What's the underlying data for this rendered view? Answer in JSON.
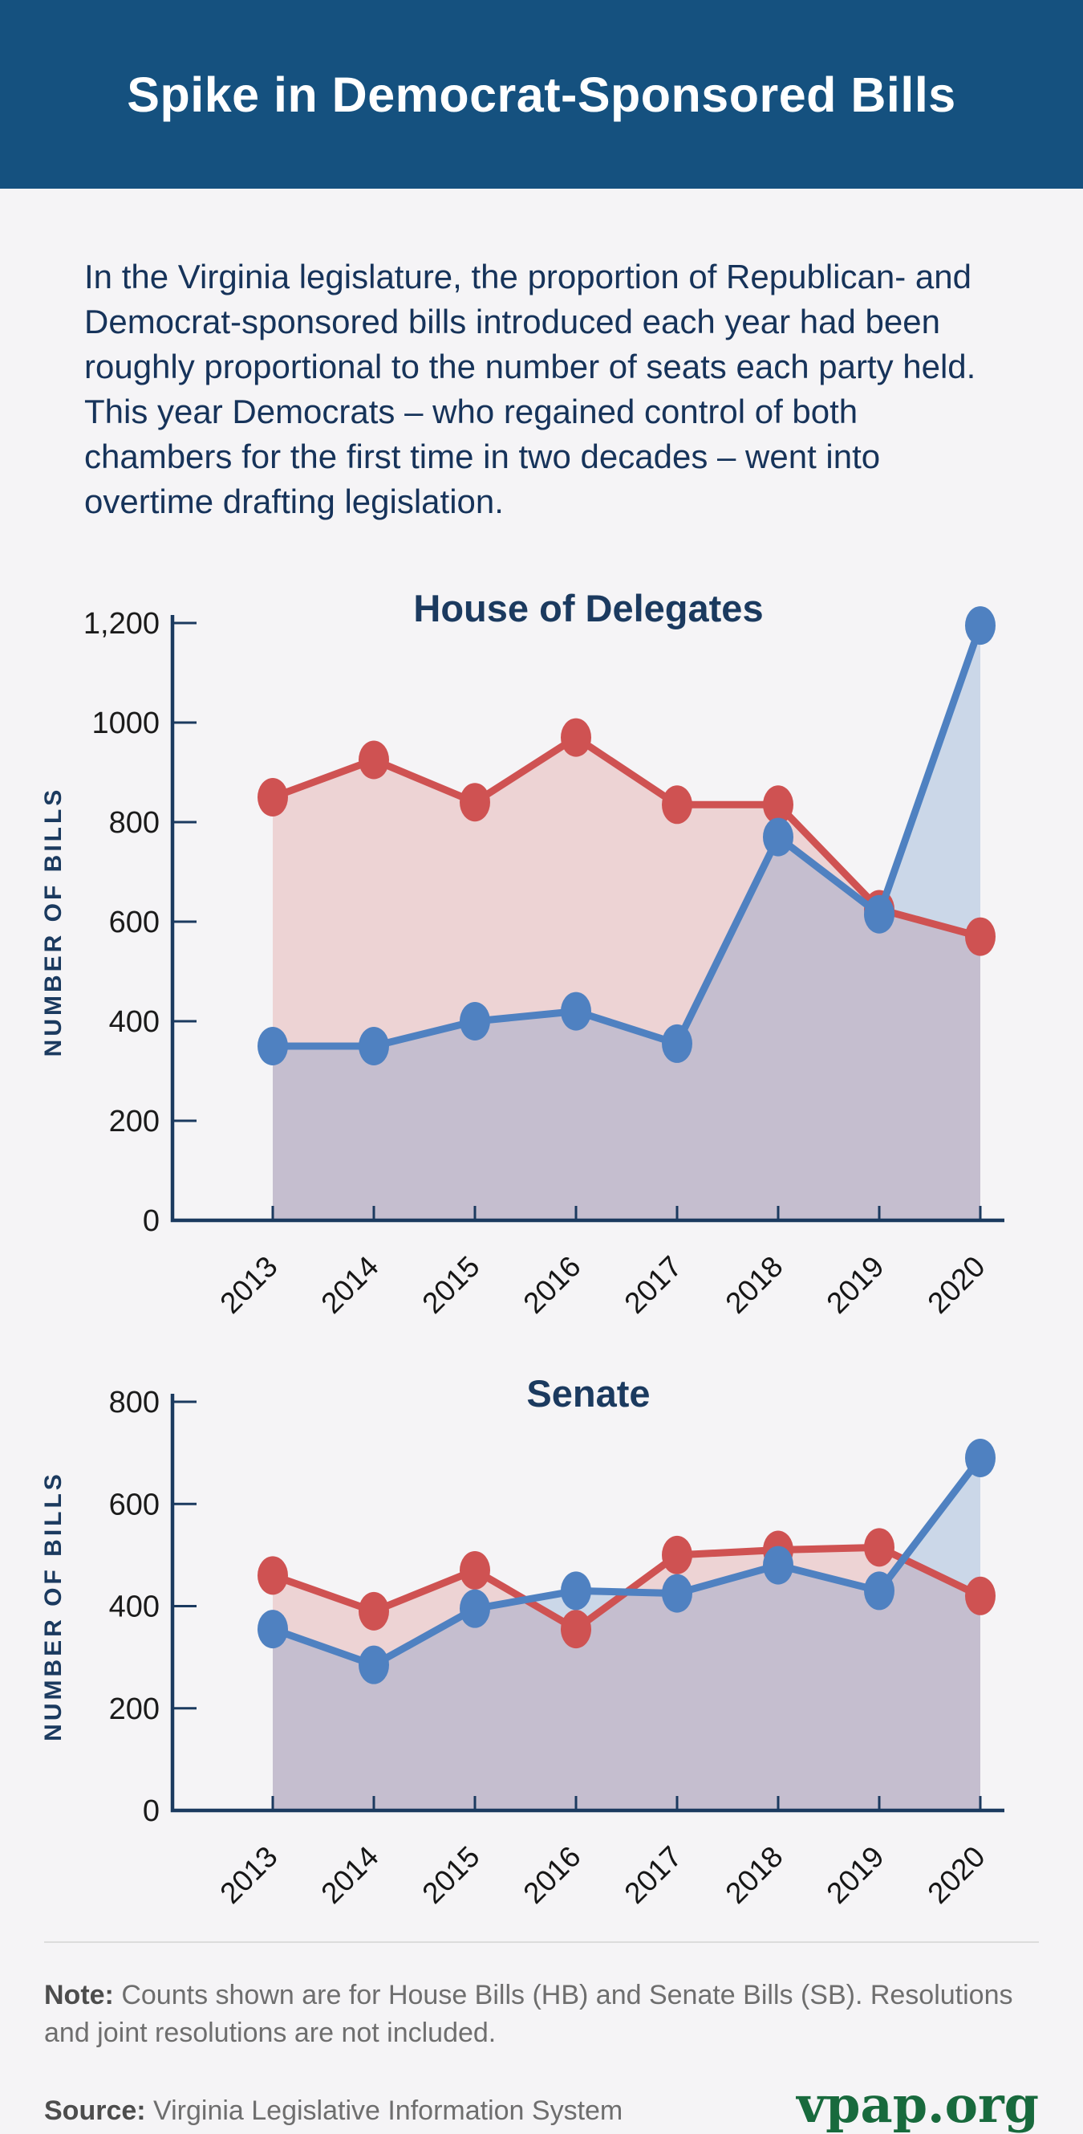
{
  "header": {
    "title": "Spike in Democrat-Sponsored Bills"
  },
  "intro": "In the Virginia legislature, the proportion of Republican- and Democrat-sponsored bills introduced each year had been roughly proportional to the number of seats each party held. This year Democrats – who regained control of both chambers for the first time in two decades – went into overtime drafting legislation.",
  "colors": {
    "header_bg": "#15517f",
    "navy_text": "#1b3a5f",
    "republican_red": "#cf5252",
    "democrat_blue": "#4f81c1",
    "page_bg": "#f5f4f6",
    "vpap_green": "#186a3d"
  },
  "chart_data": [
    {
      "type": "area",
      "title": "House of Delegates",
      "xlabel": "",
      "ylabel": "NUMBER OF BILLS",
      "x": [
        "2013",
        "2014",
        "2015",
        "2016",
        "2017",
        "2018",
        "2019",
        "2020"
      ],
      "ylim": [
        0,
        1200
      ],
      "ytick_step": 200,
      "ytick_labels": [
        "0",
        "200",
        "400",
        "600",
        "800",
        "1000",
        "1,200"
      ],
      "grid": false,
      "legend": "none",
      "series": [
        {
          "name": "Republican",
          "color": "#cf5252",
          "fill": "rgba(207,82,82,0.20)",
          "values": [
            850,
            925,
            840,
            970,
            835,
            835,
            625,
            570
          ]
        },
        {
          "name": "Democrat",
          "color": "#4f81c1",
          "fill": "rgba(79,129,193,0.25)",
          "values": [
            350,
            350,
            400,
            420,
            355,
            770,
            615,
            1195
          ]
        }
      ]
    },
    {
      "type": "area",
      "title": "Senate",
      "xlabel": "",
      "ylabel": "NUMBER OF BILLS",
      "x": [
        "2013",
        "2014",
        "2015",
        "2016",
        "2017",
        "2018",
        "2019",
        "2020"
      ],
      "ylim": [
        0,
        800
      ],
      "ytick_step": 200,
      "ytick_labels": [
        "0",
        "200",
        "400",
        "600",
        "800"
      ],
      "grid": false,
      "legend": "none",
      "series": [
        {
          "name": "Republican",
          "color": "#cf5252",
          "fill": "rgba(207,82,82,0.20)",
          "values": [
            460,
            390,
            470,
            355,
            500,
            510,
            515,
            420
          ]
        },
        {
          "name": "Democrat",
          "color": "#4f81c1",
          "fill": "rgba(79,129,193,0.25)",
          "values": [
            355,
            285,
            395,
            430,
            425,
            480,
            430,
            690
          ]
        }
      ]
    }
  ],
  "footer": {
    "note_label": "Note:",
    "note": " Counts shown are for House Bills (HB) and Senate Bills (SB). Resolutions and joint resolutions are not included.",
    "source_label": "Source:",
    "source": " Virginia Legislative Information System",
    "logo": "vpap.org"
  }
}
